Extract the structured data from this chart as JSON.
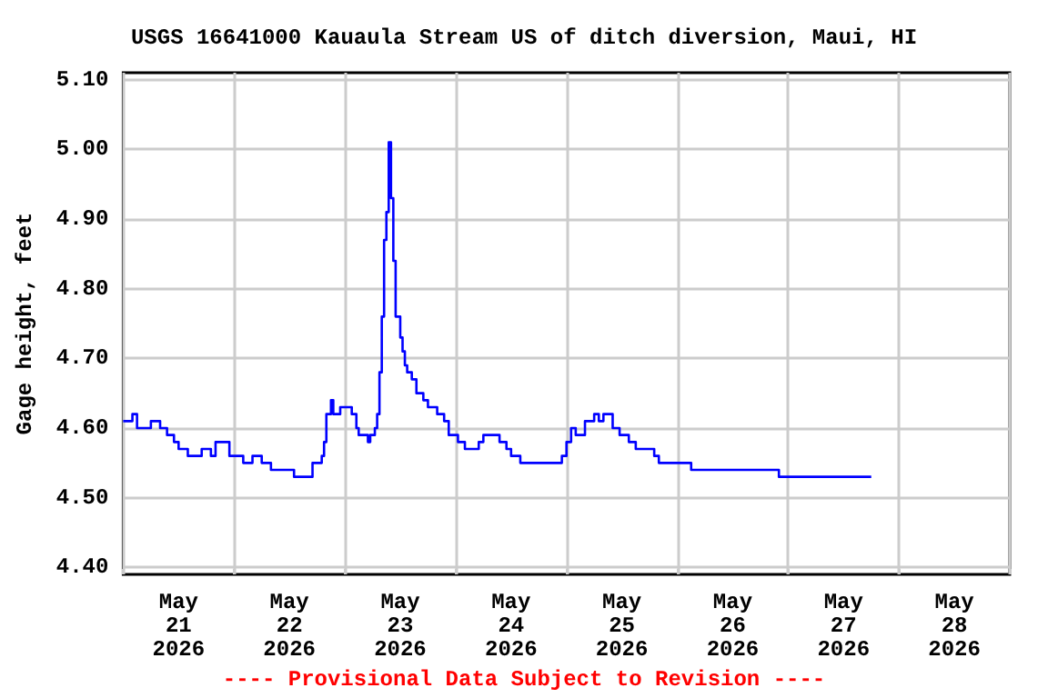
{
  "chart_data": {
    "type": "step",
    "title": "USGS 16641000 Kauaula Stream US of ditch diversion, Maui, HI",
    "ylabel": "Gage height, feet",
    "annotations": [
      "---- Provisional Data Subject to Revision ----"
    ],
    "xlim": [
      "2026-05-21T00:00",
      "2026-05-29T00:00"
    ],
    "xticks": [
      {
        "value": "2026-05-21T00:00",
        "label": null
      },
      {
        "value": "2026-05-21T12:00",
        "label": "May\n21\n2026"
      },
      {
        "value": "2026-05-22T00:00",
        "label": null
      },
      {
        "value": "2026-05-22T12:00",
        "label": "May\n22\n2026"
      },
      {
        "value": "2026-05-23T00:00",
        "label": null
      },
      {
        "value": "2026-05-23T12:00",
        "label": "May\n23\n2026"
      },
      {
        "value": "2026-05-24T00:00",
        "label": null
      },
      {
        "value": "2026-05-24T12:00",
        "label": "May\n24\n2026"
      },
      {
        "value": "2026-05-25T00:00",
        "label": null
      },
      {
        "value": "2026-05-25T12:00",
        "label": "May\n25\n2026"
      },
      {
        "value": "2026-05-26T00:00",
        "label": null
      },
      {
        "value": "2026-05-26T12:00",
        "label": "May\n26\n2026"
      },
      {
        "value": "2026-05-27T00:00",
        "label": null
      },
      {
        "value": "2026-05-27T12:00",
        "label": "May\n27\n2026"
      },
      {
        "value": "2026-05-28T00:00",
        "label": null
      },
      {
        "value": "2026-05-28T12:00",
        "label": "May\n28\n2026"
      },
      {
        "value": "2026-05-29T00:00",
        "label": null
      }
    ],
    "ylim": [
      4.39,
      5.11
    ],
    "yticks": [
      {
        "value": 4.4,
        "label": "4.40"
      },
      {
        "value": 4.5,
        "label": "4.50"
      },
      {
        "value": 4.6,
        "label": "4.60"
      },
      {
        "value": 4.7,
        "label": "4.70"
      },
      {
        "value": 4.8,
        "label": "4.80"
      },
      {
        "value": 4.9,
        "label": "4.90"
      },
      {
        "value": 5.0,
        "label": "5.00"
      },
      {
        "value": 5.1,
        "label": "5.10"
      }
    ],
    "grid": true,
    "marker": "none",
    "line_style": "solid",
    "series": [
      {
        "color": "#0000ff",
        "x": [
          "2026-05-21T00:00",
          "2026-05-21T02:00",
          "2026-05-21T03:00",
          "2026-05-21T06:00",
          "2026-05-21T08:00",
          "2026-05-21T09:30",
          "2026-05-21T11:00",
          "2026-05-21T12:00",
          "2026-05-21T14:00",
          "2026-05-21T17:00",
          "2026-05-21T19:00",
          "2026-05-21T20:00",
          "2026-05-21T22:00",
          "2026-05-21T23:00",
          "2026-05-22T02:00",
          "2026-05-22T04:00",
          "2026-05-22T06:00",
          "2026-05-22T08:00",
          "2026-05-22T13:00",
          "2026-05-22T17:00",
          "2026-05-22T19:00",
          "2026-05-22T19:30",
          "2026-05-22T20:00",
          "2026-05-22T21:00",
          "2026-05-22T21:30",
          "2026-05-22T23:00",
          "2026-05-23T01:00",
          "2026-05-23T01:30",
          "2026-05-23T02:30",
          "2026-05-23T03:00",
          "2026-05-23T05:00",
          "2026-05-23T05:30",
          "2026-05-23T06:30",
          "2026-05-23T07:00",
          "2026-05-23T07:30",
          "2026-05-23T08:00",
          "2026-05-23T08:30",
          "2026-05-23T09:00",
          "2026-05-23T09:30",
          "2026-05-23T10:00",
          "2026-05-23T10:30",
          "2026-05-23T11:00",
          "2026-05-23T12:00",
          "2026-05-23T12:30",
          "2026-05-23T13:00",
          "2026-05-23T13:30",
          "2026-05-23T14:30",
          "2026-05-23T15:30",
          "2026-05-23T17:00",
          "2026-05-23T18:00",
          "2026-05-23T20:00",
          "2026-05-23T21:30",
          "2026-05-23T22:30",
          "2026-05-24T00:30",
          "2026-05-24T02:00",
          "2026-05-24T05:00",
          "2026-05-24T06:00",
          "2026-05-24T08:30",
          "2026-05-24T09:30",
          "2026-05-24T11:00",
          "2026-05-24T12:00",
          "2026-05-24T14:00",
          "2026-05-24T16:00",
          "2026-05-24T22:00",
          "2026-05-24T23:00",
          "2026-05-25T00:00",
          "2026-05-25T01:00",
          "2026-05-25T02:00",
          "2026-05-25T04:00",
          "2026-05-25T06:00",
          "2026-05-25T07:00",
          "2026-05-25T08:00",
          "2026-05-25T10:00",
          "2026-05-25T11:30",
          "2026-05-25T13:30",
          "2026-05-25T15:00",
          "2026-05-25T19:00",
          "2026-05-25T20:00",
          "2026-05-26T03:00",
          "2026-05-26T22:00",
          "2026-05-27T18:00"
        ],
        "values": [
          4.61,
          4.62,
          4.6,
          4.61,
          4.6,
          4.59,
          4.58,
          4.57,
          4.56,
          4.57,
          4.56,
          4.58,
          4.58,
          4.56,
          4.55,
          4.56,
          4.55,
          4.54,
          4.53,
          4.55,
          4.56,
          4.58,
          4.62,
          4.64,
          4.62,
          4.63,
          4.63,
          4.62,
          4.6,
          4.59,
          4.58,
          4.59,
          4.6,
          4.62,
          4.68,
          4.76,
          4.87,
          4.91,
          5.01,
          4.93,
          4.84,
          4.76,
          4.73,
          4.71,
          4.69,
          4.68,
          4.67,
          4.65,
          4.64,
          4.63,
          4.62,
          4.61,
          4.59,
          4.58,
          4.57,
          4.58,
          4.59,
          4.59,
          4.58,
          4.57,
          4.56,
          4.55,
          4.55,
          4.55,
          4.56,
          4.58,
          4.6,
          4.59,
          4.61,
          4.62,
          4.61,
          4.62,
          4.6,
          4.59,
          4.58,
          4.57,
          4.56,
          4.55,
          4.54,
          4.53,
          4.53
        ]
      }
    ]
  }
}
